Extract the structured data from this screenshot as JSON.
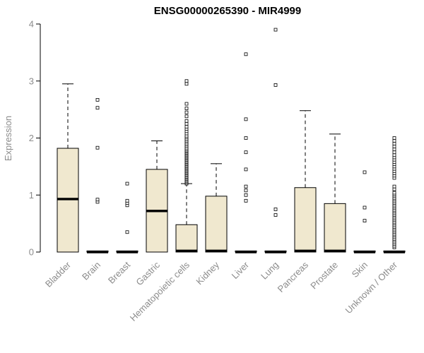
{
  "chart_data": {
    "type": "boxplot",
    "title": "ENSG00000265390 - MIR4999",
    "ylabel": "Expression",
    "xlabel": "",
    "ylim": [
      0,
      4
    ],
    "yticks": [
      0,
      1,
      2,
      3,
      4
    ],
    "grid": false,
    "legend": false,
    "colors": {
      "box_fill": "#f0e8cf",
      "box_stroke": "#000000",
      "axis": "#000000",
      "label_text": "#8c8c8c",
      "title_text": "#000000",
      "background": "#ffffff"
    },
    "categories": [
      "Bladder",
      "Brain",
      "Breast",
      "Gastric",
      "Hematopoietic cells",
      "Kidney",
      "Liver",
      "Lung",
      "Pancreas",
      "Prostate",
      "Skin",
      "Unknown / Other"
    ],
    "boxes": [
      {
        "category": "Bladder",
        "low": 0,
        "q1": 0,
        "median": 0.93,
        "q3": 1.82,
        "high": 2.95,
        "outliers": []
      },
      {
        "category": "Brain",
        "low": 0,
        "q1": 0,
        "median": 0,
        "q3": 0.02,
        "high": 0.02,
        "outliers": [
          0.88,
          0.92,
          1.83,
          2.53,
          2.67
        ]
      },
      {
        "category": "Breast",
        "low": 0,
        "q1": 0,
        "median": 0,
        "q3": 0.02,
        "high": 0.02,
        "outliers": [
          0.35,
          0.82,
          0.86,
          0.9,
          1.2
        ]
      },
      {
        "category": "Gastric",
        "low": 0,
        "q1": 0,
        "median": 0.72,
        "q3": 1.45,
        "high": 1.95,
        "outliers": []
      },
      {
        "category": "Hematopoietic cells",
        "low": 0,
        "q1": 0,
        "median": 0.02,
        "q3": 0.48,
        "high": 1.2,
        "outliers": [
          1.2,
          1.22,
          1.24,
          1.26,
          1.28,
          1.3,
          1.32,
          1.34,
          1.36,
          1.38,
          1.4,
          1.42,
          1.44,
          1.46,
          1.48,
          1.5,
          1.52,
          1.54,
          1.56,
          1.58,
          1.6,
          1.62,
          1.64,
          1.66,
          1.68,
          1.7,
          1.72,
          1.74,
          1.76,
          1.78,
          1.8,
          1.83,
          1.86,
          1.89,
          1.92,
          1.95,
          1.98,
          2.01,
          2.04,
          2.08,
          2.12,
          2.16,
          2.2,
          2.25,
          2.3,
          2.38,
          2.45,
          2.52,
          2.6,
          2.95,
          3.0
        ]
      },
      {
        "category": "Kidney",
        "low": 0,
        "q1": 0,
        "median": 0.02,
        "q3": 0.98,
        "high": 1.55,
        "outliers": []
      },
      {
        "category": "Liver",
        "low": 0,
        "q1": 0,
        "median": 0,
        "q3": 0.02,
        "high": 0.02,
        "outliers": [
          0.9,
          1.0,
          1.08,
          1.15,
          1.45,
          1.75,
          2.0,
          2.33,
          3.47
        ]
      },
      {
        "category": "Lung",
        "low": 0,
        "q1": 0,
        "median": 0,
        "q3": 0.02,
        "high": 0.02,
        "outliers": [
          0.65,
          0.75,
          2.93,
          3.9
        ]
      },
      {
        "category": "Pancreas",
        "low": 0,
        "q1": 0,
        "median": 0.02,
        "q3": 1.13,
        "high": 2.48,
        "outliers": []
      },
      {
        "category": "Prostate",
        "low": 0,
        "q1": 0,
        "median": 0.02,
        "q3": 0.85,
        "high": 2.07,
        "outliers": []
      },
      {
        "category": "Skin",
        "low": 0,
        "q1": 0,
        "median": 0,
        "q3": 0.02,
        "high": 0.02,
        "outliers": [
          0.55,
          0.78,
          1.4
        ]
      },
      {
        "category": "Unknown / Other",
        "low": 0,
        "q1": 0,
        "median": 0,
        "q3": 0.02,
        "high": 0.02,
        "outliers": [
          0.08,
          0.11,
          0.14,
          0.17,
          0.2,
          0.23,
          0.26,
          0.29,
          0.32,
          0.35,
          0.38,
          0.41,
          0.44,
          0.47,
          0.5,
          0.53,
          0.56,
          0.59,
          0.62,
          0.65,
          0.68,
          0.71,
          0.74,
          0.77,
          0.8,
          0.83,
          0.86,
          0.89,
          0.92,
          0.95,
          0.98,
          1.01,
          1.04,
          1.1,
          1.15,
          1.3,
          1.34,
          1.38,
          1.42,
          1.46,
          1.5,
          1.54,
          1.58,
          1.62,
          1.66,
          1.7,
          1.75,
          1.8,
          1.85,
          1.9,
          1.95,
          2.0
        ]
      }
    ]
  }
}
